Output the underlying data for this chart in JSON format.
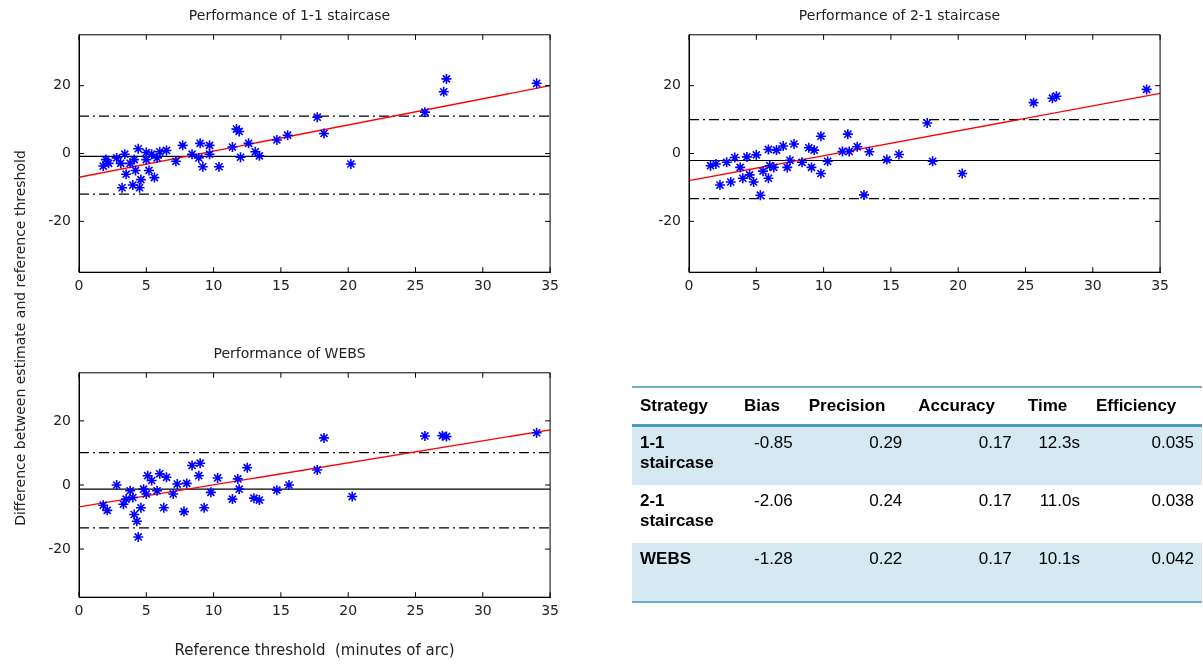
{
  "chart_data": [
    {
      "type": "scatter",
      "title": "Performance of 1-1 staircase",
      "xlim": [
        0,
        35
      ],
      "ylim": [
        -35,
        35
      ],
      "xticks": [
        0,
        5,
        10,
        15,
        20,
        25,
        30,
        35
      ],
      "yticks": [
        -20,
        0,
        20
      ],
      "legend": false,
      "grid": false,
      "ref_lines": [
        {
          "axis": "y",
          "value": -0.85,
          "line_style": "solid",
          "color": "#000000"
        },
        {
          "axis": "y",
          "value": 11,
          "line_style": "dashed",
          "color": "#000000"
        },
        {
          "axis": "y",
          "value": -12,
          "line_style": "dashed",
          "color": "#000000"
        }
      ],
      "series": [
        {
          "type": "scatter",
          "marker": "cross",
          "color": "#0000ff",
          "x": [
            34.0,
            27.3,
            27.1,
            25.7,
            17.7,
            18.2,
            20.2,
            15.5,
            14.7,
            13.4,
            13.1,
            12.6,
            12.0,
            11.7,
            11.9,
            11.4,
            10.4,
            9.7,
            9.7,
            9.2,
            9.0,
            8.9,
            8.4,
            7.7,
            7.2,
            6.5,
            6.0,
            5.6,
            5.4,
            5.2,
            5.0,
            4.6,
            4.5,
            4.4,
            4.2,
            4.0,
            3.8,
            3.5,
            3.4,
            3.2,
            3.1,
            2.8,
            2.2,
            2.0,
            1.8,
            5.0,
            5.8,
            4.1
          ],
          "values": [
            20.7,
            22,
            18.2,
            12.2,
            10.7,
            5.9,
            -3.1,
            5.4,
            4.0,
            -0.7,
            0.5,
            3.0,
            -1.1,
            7.2,
            6.5,
            1.9,
            -3.9,
            2.4,
            -0.2,
            -3.9,
            3.0,
            -1.3,
            -0.2,
            2.4,
            -2.3,
            0.9,
            0.5,
            -7.1,
            -0.2,
            -5.0,
            0.3,
            -7.7,
            -10.1,
            1.4,
            -5.0,
            -9.3,
            -2.9,
            -6.1,
            -0.2,
            -10.1,
            -2.9,
            -1.3,
            -2.9,
            -1.8,
            -3.7,
            -1.8,
            -1.3,
            -1.8
          ]
        },
        {
          "type": "line",
          "color": "#ff0000",
          "x": [
            0,
            35
          ],
          "values": [
            -7,
            20
          ]
        }
      ]
    },
    {
      "type": "scatter",
      "title": "Performance of 2-1 staircase",
      "xlim": [
        0,
        35
      ],
      "ylim": [
        -35,
        35
      ],
      "xticks": [
        0,
        5,
        10,
        15,
        20,
        25,
        30,
        35
      ],
      "yticks": [
        -20,
        0,
        20
      ],
      "legend": false,
      "grid": false,
      "ref_lines": [
        {
          "axis": "y",
          "value": -2.06,
          "line_style": "solid",
          "color": "#000000"
        },
        {
          "axis": "y",
          "value": 10,
          "line_style": "dashed",
          "color": "#000000"
        },
        {
          "axis": "y",
          "value": -13.3,
          "line_style": "dashed",
          "color": "#000000"
        }
      ],
      "series": [
        {
          "type": "scatter",
          "marker": "cross",
          "color": "#0000ff",
          "x": [
            34.0,
            27.3,
            27.0,
            25.6,
            17.7,
            18.1,
            20.3,
            15.6,
            14.7,
            13.0,
            13.4,
            12.5,
            11.8,
            11.9,
            11.4,
            10.3,
            9.8,
            9.8,
            9.3,
            8.9,
            9.1,
            8.4,
            7.8,
            7.3,
            7.0,
            6.5,
            6.3,
            5.9,
            5.9,
            5.3,
            5.0,
            4.8,
            4.5,
            4.3,
            4.0,
            3.8,
            3.4,
            3.1,
            2.8,
            2.3,
            2.0,
            1.6,
            5.5,
            6.0,
            7.5
          ],
          "values": [
            18.9,
            16.9,
            16.3,
            15.0,
            9.0,
            -2.3,
            -5.9,
            -0.3,
            -1.8,
            -12.2,
            0.5,
            2.0,
            5.7,
            0.6,
            0.6,
            -2.3,
            5.1,
            -5.9,
            1.0,
            1.7,
            -4.1,
            -2.6,
            2.8,
            -4.1,
            2.2,
            1.0,
            -4.1,
            1.2,
            -7.3,
            -12.3,
            -0.4,
            -8.4,
            -6.3,
            -1.0,
            -7.3,
            -4.1,
            -1.2,
            -8.4,
            -2.6,
            -9.3,
            -3.1,
            -3.6,
            -5.2,
            -3.6,
            -2.0
          ]
        },
        {
          "type": "line",
          "color": "#ff0000",
          "x": [
            0,
            35
          ],
          "values": [
            -8,
            17.7
          ]
        }
      ]
    },
    {
      "type": "scatter",
      "title": "Performance of WEBS",
      "xlabel": "Reference threshold  (minutes of arc)",
      "ylabel": "Difference between estimate and reference threshold",
      "xlim": [
        0,
        35
      ],
      "ylim": [
        -35,
        35
      ],
      "xticks": [
        0,
        5,
        10,
        15,
        20,
        25,
        30,
        35
      ],
      "yticks": [
        -20,
        0,
        20
      ],
      "legend": false,
      "grid": false,
      "ref_lines": [
        {
          "axis": "y",
          "value": -1.28,
          "line_style": "solid",
          "color": "#000000"
        },
        {
          "axis": "y",
          "value": 10.1,
          "line_style": "dashed",
          "color": "#000000"
        },
        {
          "axis": "y",
          "value": -13.4,
          "line_style": "dashed",
          "color": "#000000"
        }
      ],
      "series": [
        {
          "type": "scatter",
          "marker": "cross",
          "color": "#0000ff",
          "x": [
            34.0,
            27.3,
            27.0,
            25.7,
            18.2,
            17.7,
            20.3,
            15.6,
            14.7,
            13.4,
            13.0,
            12.5,
            11.8,
            11.9,
            11.4,
            10.3,
            9.8,
            9.3,
            9.0,
            8.9,
            8.4,
            8.0,
            7.8,
            7.3,
            7.0,
            6.5,
            6.3,
            6.0,
            5.8,
            5.4,
            5.1,
            5.0,
            4.6,
            4.4,
            4.3,
            4.1,
            3.8,
            3.5,
            3.3,
            2.8,
            2.1,
            1.8,
            4.8,
            4.0
          ],
          "values": [
            16.3,
            15.1,
            15.4,
            15.3,
            14.7,
            4.7,
            -3.6,
            0.0,
            -1.6,
            -4.7,
            -4.1,
            5.4,
            1.9,
            -1.3,
            -4.4,
            2.2,
            -2.3,
            -7.1,
            6.8,
            2.9,
            6.1,
            0.5,
            -8.3,
            0.3,
            -2.8,
            2.4,
            -7.1,
            3.5,
            -1.8,
            1.4,
            2.9,
            -2.8,
            -7.1,
            -16.2,
            -11.3,
            -9.2,
            -1.8,
            -4.4,
            -6.0,
            0.0,
            -7.9,
            -6.3,
            -1.3,
            -3.9
          ]
        },
        {
          "type": "line",
          "color": "#ff0000",
          "x": [
            0,
            35
          ],
          "values": [
            -6.8,
            17.2
          ]
        }
      ]
    },
    {
      "type": "other",
      "categories": [
        "Strategy",
        "Bias",
        "Precision",
        "Accuracy",
        "Time",
        "Efficiency"
      ],
      "cell_labels": [
        [
          "1-1 staircase",
          "-0.85",
          "0.29",
          "0.17",
          "12.3s",
          "0.035"
        ],
        [
          "2-1 staircase",
          "-2.06",
          "0.24",
          "0.17",
          "11.0s",
          "0.038"
        ],
        [
          "WEBS",
          "-1.28",
          "0.22",
          "0.17",
          "10.1s",
          "0.042"
        ]
      ]
    }
  ]
}
